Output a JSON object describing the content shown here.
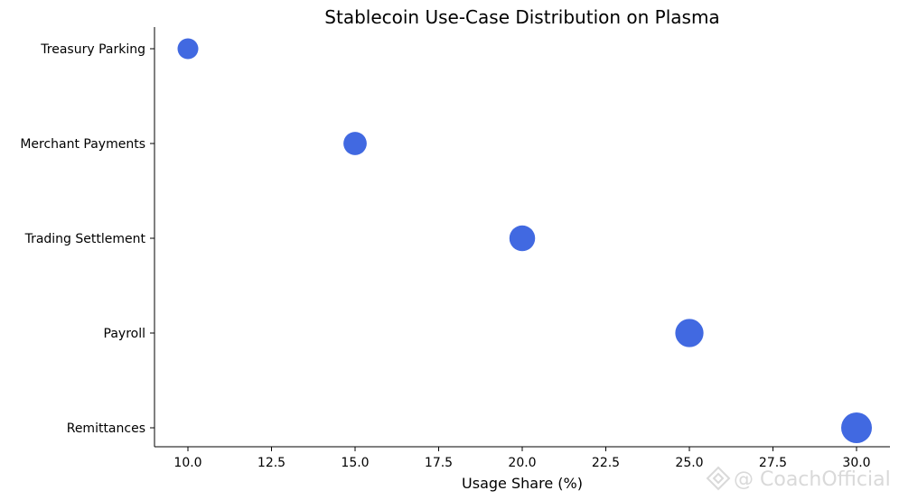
{
  "chart_data": {
    "type": "scatter",
    "title": "Stablecoin Use-Case Distribution on Plasma",
    "xlabel": "Usage Share (%)",
    "ylabel": "",
    "xlim": [
      9.0,
      31.0
    ],
    "x_ticks": [
      "10.0",
      "12.5",
      "15.0",
      "17.5",
      "20.0",
      "22.5",
      "25.0",
      "27.5",
      "30.0"
    ],
    "categories": [
      "Treasury Parking",
      "Merchant Payments",
      "Trading Settlement",
      "Payroll",
      "Remittances"
    ],
    "values": [
      10,
      15,
      20,
      25,
      30
    ],
    "point_color": "#4169e1",
    "marker_size_encodes_value": true,
    "grid": false,
    "legend": "none"
  },
  "watermark": {
    "text": "@ CoachOfficial",
    "color": "#d9d9d9"
  }
}
